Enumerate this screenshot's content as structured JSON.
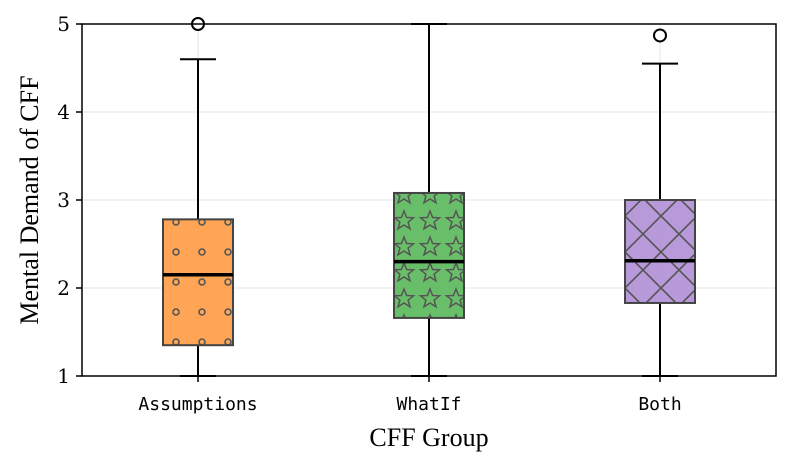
{
  "chart_data": {
    "type": "boxplot",
    "xlabel": "CFF Group",
    "ylabel": "Mental Demand of CFF",
    "ylim": [
      1,
      5
    ],
    "yticks": [
      "1",
      "2",
      "3",
      "4",
      "5"
    ],
    "grid": true,
    "groups": [
      {
        "name": "Assumptions",
        "whisker_low": 1.0,
        "q1": 1.35,
        "median": 2.15,
        "q3": 2.78,
        "whisker_high": 4.6,
        "outliers": [
          5.0
        ],
        "color": "#ff9d46",
        "pattern": "dots"
      },
      {
        "name": "WhatIf",
        "whisker_low": 1.0,
        "q1": 1.66,
        "median": 2.3,
        "q3": 3.08,
        "whisker_high": 5.0,
        "outliers": [],
        "color": "#5cb85c",
        "pattern": "stars"
      },
      {
        "name": "Both",
        "whisker_low": 1.0,
        "q1": 1.83,
        "median": 2.31,
        "q3": 3.0,
        "whisker_high": 4.55,
        "outliers": [
          4.87
        ],
        "color": "#b290d6",
        "pattern": "crosshatch"
      }
    ]
  }
}
